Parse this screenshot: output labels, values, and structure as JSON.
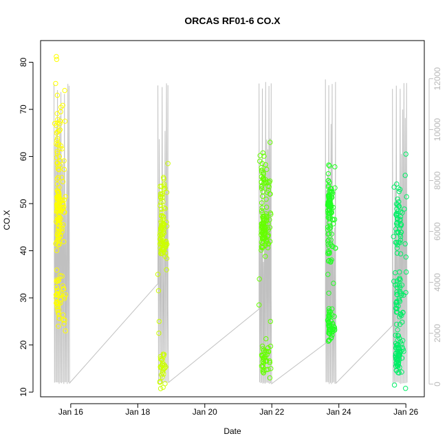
{
  "chart_data": {
    "type": "scatter",
    "title": "ORCAS RF01-6 CO.X",
    "xlabel": "Date",
    "ylabel": "CO.X",
    "xlim": [
      15.1,
      26.55
    ],
    "ylim": [
      9.0,
      84.6
    ],
    "x_ticks": [
      {
        "value": 16,
        "label": "Jan 16"
      },
      {
        "value": 18,
        "label": "Jan 18"
      },
      {
        "value": 20,
        "label": "Jan 20"
      },
      {
        "value": 22,
        "label": "Jan 22"
      },
      {
        "value": 24,
        "label": "Jan 24"
      },
      {
        "value": 26,
        "label": "Jan 26"
      }
    ],
    "y_ticks": [
      10,
      20,
      30,
      40,
      50,
      60,
      70,
      80
    ],
    "y2_ticks": [
      0,
      2000,
      4000,
      6000,
      8000,
      10000,
      12000
    ],
    "y2lim": [
      -500,
      13500
    ],
    "y2_color": "#c0c0c0",
    "grid": false,
    "flights": [
      {
        "x_range": [
          15.5,
          15.85
        ],
        "n": 170,
        "color": "#ffff00",
        "clusters": [
          [
            48,
            7,
            0.55
          ],
          [
            30,
            5,
            0.25
          ],
          [
            62,
            10,
            0.2
          ]
        ],
        "extra": [
          [
            15.57,
            81.2
          ],
          [
            15.58,
            80.6
          ],
          [
            15.55,
            75.5
          ],
          [
            15.6,
            73.0
          ],
          [
            15.82,
            74.0
          ],
          [
            15.7,
            69.5
          ],
          [
            15.83,
            67.5
          ],
          [
            15.52,
            67.0
          ],
          [
            15.8,
            24.5
          ],
          [
            15.84,
            23.0
          ]
        ]
      },
      {
        "x_range": [
          18.6,
          18.92
        ],
        "n": 120,
        "color": "#ccff00",
        "clusters": [
          [
            43,
            5,
            0.55
          ],
          [
            52,
            3,
            0.2
          ],
          [
            15,
            3,
            0.25
          ]
        ],
        "extra": [
          [
            18.9,
            58.5
          ],
          [
            18.6,
            35.0
          ],
          [
            18.62,
            31.5
          ],
          [
            18.64,
            25.0
          ],
          [
            18.63,
            22.5
          ]
        ]
      },
      {
        "x_range": [
          21.62,
          21.98
        ],
        "n": 160,
        "color": "#66ff00",
        "clusters": [
          [
            44,
            4,
            0.45
          ],
          [
            17,
            3,
            0.3
          ],
          [
            55,
            5,
            0.25
          ]
        ],
        "extra": [
          [
            21.95,
            63.0
          ],
          [
            21.65,
            60.2
          ],
          [
            21.64,
            59.0
          ],
          [
            21.96,
            48.0
          ],
          [
            21.63,
            34.0
          ],
          [
            21.62,
            28.5
          ],
          [
            21.96,
            25.0
          ],
          [
            21.97,
            15.0
          ]
        ]
      },
      {
        "x_range": [
          23.62,
          23.9
        ],
        "n": 160,
        "color": "#22ff22",
        "clusters": [
          [
            50,
            5,
            0.6
          ],
          [
            24,
            3,
            0.25
          ],
          [
            39,
            4,
            0.15
          ]
        ],
        "extra": [
          [
            23.72,
            58.0
          ],
          [
            23.88,
            57.8
          ],
          [
            23.7,
            31.0
          ],
          [
            23.71,
            27.0
          ],
          [
            23.7,
            21.0
          ]
        ]
      },
      {
        "x_range": [
          25.62,
          26.02
        ],
        "n": 160,
        "color": "#00ee66",
        "clusters": [
          [
            18,
            4,
            0.4
          ],
          [
            46,
            6,
            0.35
          ],
          [
            30,
            5,
            0.25
          ]
        ],
        "extra": [
          [
            26.0,
            60.5
          ],
          [
            25.98,
            56.0
          ],
          [
            25.65,
            53.5
          ],
          [
            25.63,
            43.0
          ],
          [
            25.64,
            33.5
          ],
          [
            25.99,
            10.8
          ],
          [
            25.66,
            11.5
          ]
        ]
      }
    ],
    "altitude_series": {
      "name": "",
      "color": "#c0c0c0",
      "ferry": [
        [
          15.68,
          2750
        ],
        [
          18.6,
          3950
        ],
        [
          18.9,
          3050
        ],
        [
          21.62,
          2950
        ],
        [
          21.98,
          3550
        ],
        [
          23.6,
          1600
        ],
        [
          23.9,
          4400
        ],
        [
          25.6,
          2300
        ]
      ],
      "flights": [
        {
          "x_range": [
            15.5,
            15.95
          ],
          "peak": 11800,
          "floor": 0,
          "spikes": 14
        },
        {
          "x_range": [
            18.6,
            18.9
          ],
          "peak": 11900,
          "floor": 0,
          "spikes": 8
        },
        {
          "x_range": [
            21.62,
            21.98
          ],
          "peak": 12000,
          "floor": 0,
          "spikes": 12
        },
        {
          "x_range": [
            23.6,
            23.9
          ],
          "peak": 12100,
          "floor": 0,
          "spikes": 10
        },
        {
          "x_range": [
            25.6,
            26.02
          ],
          "peak": 12000,
          "floor": 0,
          "spikes": 12
        }
      ]
    }
  }
}
